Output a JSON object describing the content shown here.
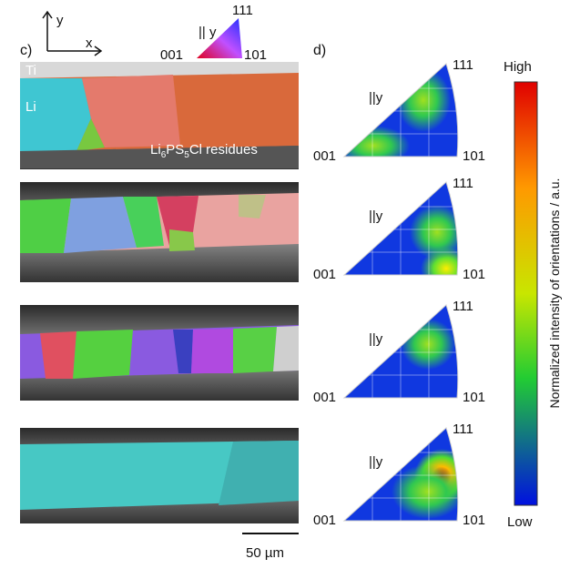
{
  "panel_c": {
    "label": "c)",
    "axes": {
      "y": "y",
      "x": "x"
    },
    "key": {
      "direction": "|| y",
      "top": "111",
      "left": "001",
      "right": "101"
    },
    "layers": {
      "ti": "Ti",
      "li": "Li",
      "residues": [
        "Li",
        "6",
        "PS",
        "5",
        "Cl residues"
      ]
    }
  },
  "scale_bar": "50 µm",
  "panel_d": {
    "label": "d)",
    "pole_figures": [
      {
        "direction": "||y",
        "top": "111",
        "left": "001",
        "right": "101"
      },
      {
        "direction": "||y",
        "top": "111",
        "left": "001",
        "right": "101"
      },
      {
        "direction": "||y",
        "top": "111",
        "left": "001",
        "right": "101"
      },
      {
        "direction": "||y",
        "top": "111",
        "left": "001",
        "right": "101"
      }
    ]
  },
  "colorbar": {
    "high": "High",
    "low": "Low",
    "title": "Normalized intensity of orientations / a.u."
  }
}
